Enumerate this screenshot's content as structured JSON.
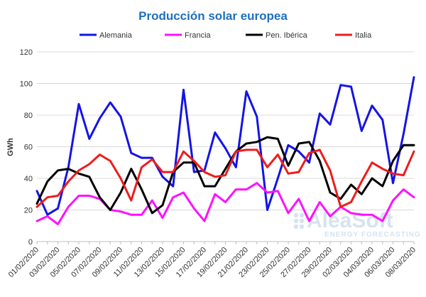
{
  "chart_data": {
    "type": "line",
    "title": "Producción solar europea",
    "ylabel": "GWh",
    "xlabel": "",
    "ylim": [
      0,
      120
    ],
    "yticks": [
      0,
      20,
      40,
      60,
      80,
      100,
      120
    ],
    "grid": true,
    "legend_position": "top",
    "colors": {
      "title": "#1f6fc0",
      "grid": "#d9d9d9",
      "axis": "#bfbfbf"
    },
    "x_tick_labels": [
      "01/02/2020",
      "03/02/2020",
      "05/02/2020",
      "07/02/2020",
      "09/02/2020",
      "11/02/2020",
      "13/02/2020",
      "15/02/2020",
      "17/02/2020",
      "19/02/2020",
      "21/02/2020",
      "23/02/2020",
      "25/02/2020",
      "27/02/2020",
      "29/02/2020",
      "02/03/2020",
      "04/03/2020",
      "06/03/2020",
      "08/03/2020"
    ],
    "dates": [
      "01/02/2020",
      "02/02/2020",
      "03/02/2020",
      "04/02/2020",
      "05/02/2020",
      "06/02/2020",
      "07/02/2020",
      "08/02/2020",
      "09/02/2020",
      "10/02/2020",
      "11/02/2020",
      "12/02/2020",
      "13/02/2020",
      "14/02/2020",
      "15/02/2020",
      "16/02/2020",
      "17/02/2020",
      "18/02/2020",
      "19/02/2020",
      "20/02/2020",
      "21/02/2020",
      "22/02/2020",
      "23/02/2020",
      "24/02/2020",
      "25/02/2020",
      "26/02/2020",
      "27/02/2020",
      "28/02/2020",
      "29/02/2020",
      "01/03/2020",
      "02/03/2020",
      "03/03/2020",
      "04/03/2020",
      "05/03/2020",
      "06/03/2020",
      "07/03/2020",
      "08/03/2020"
    ],
    "series": [
      {
        "name": "Alemania",
        "color": "#1414e6",
        "values": [
          32,
          17,
          21,
          47,
          87,
          65,
          78,
          88,
          79,
          56,
          53,
          53,
          41,
          35,
          96,
          44,
          45,
          69,
          59,
          47,
          95,
          79,
          20,
          40,
          61,
          57,
          50,
          81,
          74,
          99,
          98,
          70,
          86,
          77,
          37,
          68,
          104
        ]
      },
      {
        "name": "Francia",
        "color": "#ff10ff",
        "values": [
          13,
          16,
          11,
          22,
          29,
          29,
          27,
          20,
          19,
          17,
          17,
          26,
          15,
          28,
          31,
          21,
          13,
          30,
          25,
          33,
          33,
          37,
          31,
          32,
          18,
          27,
          13,
          25,
          16,
          22,
          18,
          17,
          17,
          13,
          26,
          33,
          28
        ]
      },
      {
        "name": "Pen. Ibérica",
        "color": "#000000",
        "values": [
          24,
          38,
          45,
          46,
          43,
          41,
          28,
          20,
          31,
          46,
          33,
          18,
          23,
          44,
          50,
          50,
          35,
          35,
          46,
          57,
          62,
          63,
          66,
          65,
          48,
          62,
          63,
          51,
          31,
          27,
          36,
          30,
          40,
          35,
          51,
          61,
          61
        ]
      },
      {
        "name": "Italia",
        "color": "#ee1c1c",
        "values": [
          22,
          28,
          29,
          38,
          45,
          49,
          55,
          51,
          40,
          26,
          47,
          52,
          44,
          44,
          57,
          51,
          44,
          41,
          42,
          57,
          58,
          58,
          47,
          55,
          43,
          44,
          56,
          58,
          45,
          22,
          25,
          38,
          50,
          46,
          43,
          42,
          57
        ]
      }
    ]
  },
  "watermark": {
    "brand": "AleaSoft",
    "tagline": "ENERGY FORECASTING"
  }
}
